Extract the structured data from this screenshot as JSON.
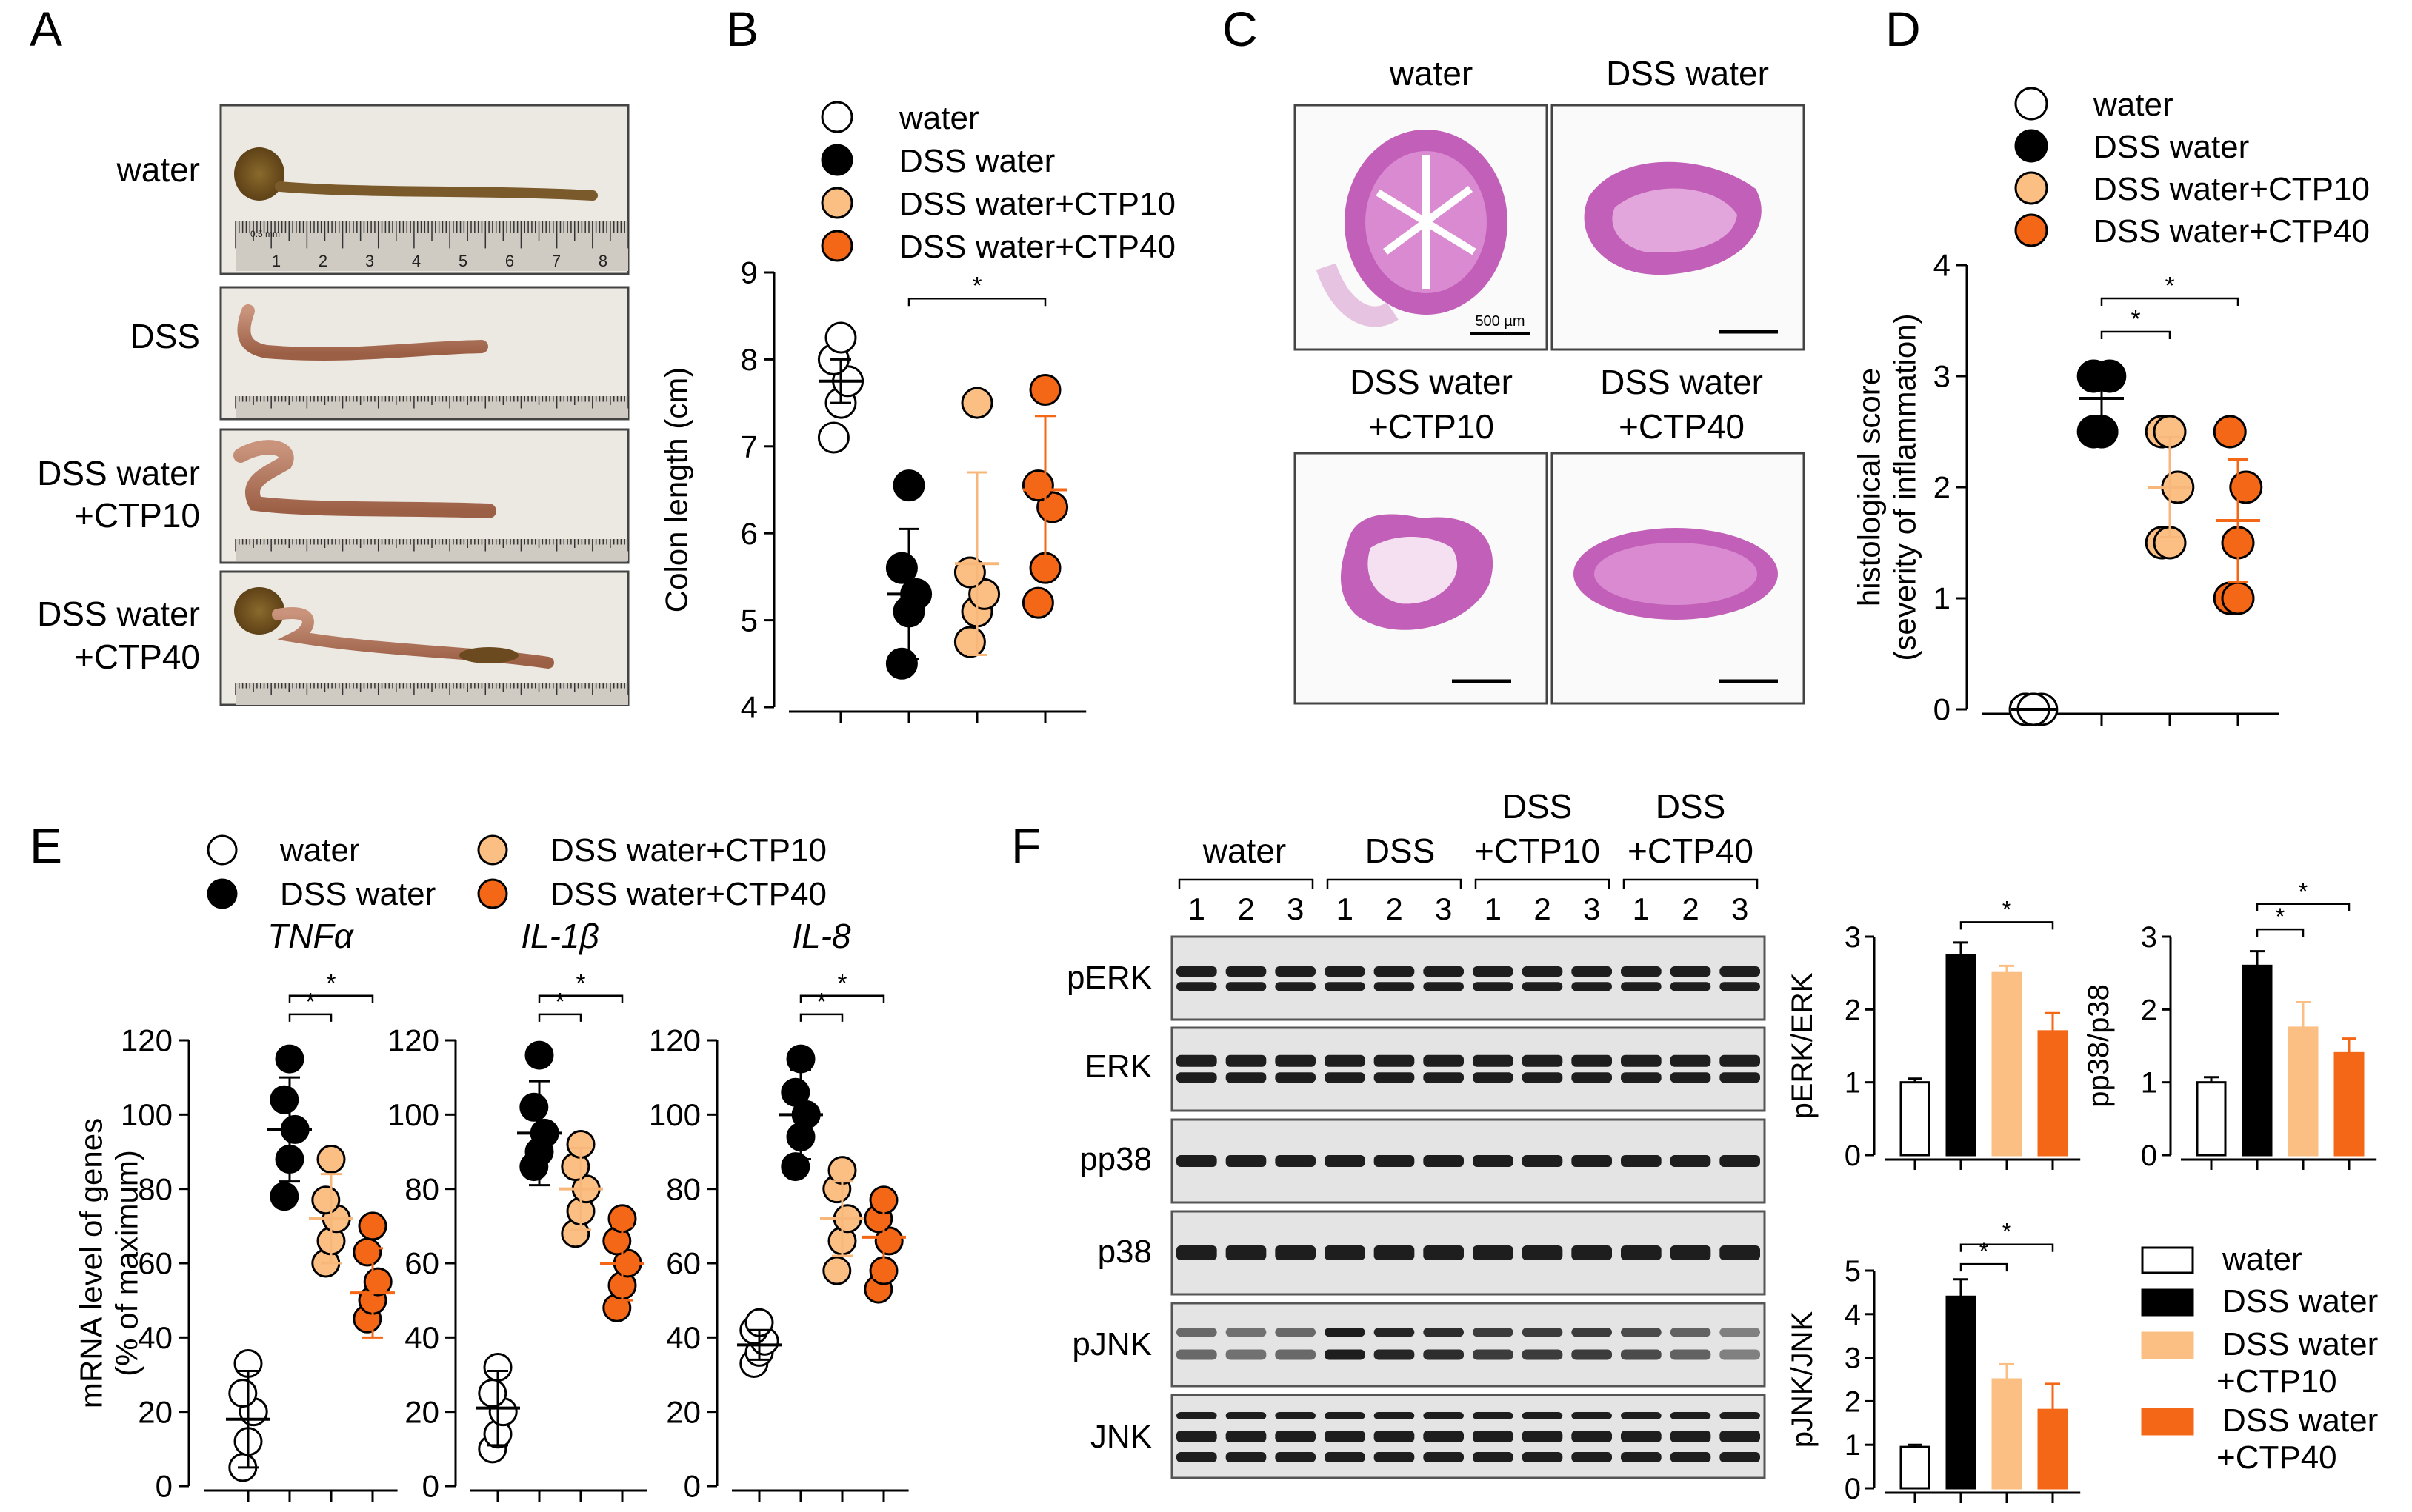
{
  "colors": {
    "water": "#ffffff",
    "dss": "#000000",
    "ctp10": "#fbbf83",
    "ctp40": "#f46717"
  },
  "groups": [
    {
      "key": "water",
      "label": "water"
    },
    {
      "key": "dss",
      "label": "DSS water"
    },
    {
      "key": "ctp10",
      "label": "DSS water+CTP10"
    },
    {
      "key": "ctp40",
      "label": "DSS water+CTP40"
    }
  ],
  "panel_a": {
    "letter": "A",
    "rows": [
      {
        "label1": "water",
        "label2": ""
      },
      {
        "label1": "DSS",
        "label2": ""
      },
      {
        "label1": "DSS water",
        "label2": "+CTP10"
      },
      {
        "label1": "DSS water",
        "label2": "+CTP40"
      }
    ],
    "ruler_numbers": [
      "1",
      "2",
      "3",
      "4",
      "5",
      "6",
      "7",
      "8"
    ],
    "ruler_unit": "0.5 mm"
  },
  "panel_c": {
    "letter": "C",
    "titles": [
      {
        "l1": "water",
        "l2": ""
      },
      {
        "l1": "DSS water",
        "l2": ""
      },
      {
        "l1": "DSS water",
        "l2": "+CTP10"
      },
      {
        "l1": "DSS water",
        "l2": "+CTP40"
      }
    ],
    "scale_label": "500 µm"
  },
  "panel_f": {
    "letter": "F",
    "lane_groups": [
      {
        "l1": "",
        "l2": "water"
      },
      {
        "l1": "",
        "l2": "DSS"
      },
      {
        "l1": "DSS",
        "l2": "+CTP10"
      },
      {
        "l1": "DSS",
        "l2": "+CTP40"
      }
    ],
    "lane_numbers": [
      "1",
      "2",
      "3"
    ],
    "blots": [
      "pERK",
      "ERK",
      "pp38",
      "p38",
      "pJNK",
      "JNK"
    ],
    "legend": [
      {
        "l1": "water",
        "l2": "",
        "color": "#ffffff"
      },
      {
        "l1": "DSS water",
        "l2": "",
        "color": "#000000"
      },
      {
        "l1": "DSS water",
        "l2": "+CTP10",
        "color": "#fbbf83"
      },
      {
        "l1": "DSS water",
        "l2": "+CTP40",
        "color": "#f46717"
      }
    ]
  },
  "chart_data": [
    {
      "id": "B",
      "letter": "B",
      "type": "scatter",
      "title": "",
      "xlabel": "",
      "ylabel": "Colon length (cm)",
      "ylim": [
        4,
        9
      ],
      "yticks": [
        4,
        5,
        6,
        7,
        8,
        9
      ],
      "legend": "top",
      "groups": [
        "water",
        "DSS water",
        "DSS water+CTP10",
        "DSS water+CTP40"
      ],
      "points": [
        [
          7.1,
          7.5,
          7.75,
          8.0,
          8.25
        ],
        [
          4.5,
          5.1,
          5.3,
          5.6,
          6.55
        ],
        [
          4.75,
          5.1,
          5.3,
          5.55,
          7.5
        ],
        [
          5.2,
          5.6,
          6.3,
          6.55,
          7.65
        ]
      ],
      "mean": [
        7.75,
        5.3,
        5.65,
        6.5
      ],
      "sem": [
        0.25,
        0.75,
        1.05,
        0.85
      ],
      "significance": [
        {
          "from": 1,
          "to": 3,
          "label": "*",
          "y": 8.7
        }
      ]
    },
    {
      "id": "D",
      "letter": "D",
      "type": "scatter",
      "title": "",
      "xlabel": "",
      "ylabel": "histological score",
      "ylabel2": "(severity of inflammation)",
      "ylim": [
        0,
        4
      ],
      "yticks": [
        0,
        1,
        2,
        3,
        4
      ],
      "legend": "top",
      "groups": [
        "water",
        "DSS water",
        "DSS water+CTP10",
        "DSS water+CTP40"
      ],
      "points": [
        [
          0,
          0,
          0,
          0,
          0
        ],
        [
          2.5,
          2.5,
          3.0,
          3.0,
          2.5
        ],
        [
          1.5,
          1.5,
          2.0,
          2.5,
          2.5
        ],
        [
          1.0,
          1.5,
          2.0,
          2.5,
          1.0
        ]
      ],
      "mean": [
        0,
        2.8,
        2.0,
        1.7
      ],
      "sem": [
        0,
        0.2,
        0.45,
        0.55
      ],
      "significance": [
        {
          "from": 1,
          "to": 2,
          "label": "*",
          "y": 3.4
        },
        {
          "from": 1,
          "to": 3,
          "label": "*",
          "y": 3.7
        }
      ]
    },
    {
      "id": "E1",
      "type": "scatter",
      "title": "TNFα",
      "ylabel": "mRNA level of genes",
      "ylabel2": "(% of maximum)",
      "ylim": [
        0,
        120
      ],
      "yticks": [
        0,
        20,
        40,
        60,
        80,
        100,
        120
      ],
      "groups": [
        "water",
        "DSS water",
        "DSS water+CTP10",
        "DSS water+CTP40"
      ],
      "points": [
        [
          5,
          12,
          20,
          25,
          33
        ],
        [
          78,
          88,
          96,
          104,
          115
        ],
        [
          60,
          66,
          72,
          77,
          88
        ],
        [
          45,
          50,
          55,
          63,
          70
        ]
      ],
      "mean": [
        18,
        96,
        72,
        52
      ],
      "sem": [
        13,
        14,
        12,
        12
      ],
      "significance": [
        {
          "from": 1,
          "to": 2,
          "label": "*",
          "y": 127
        },
        {
          "from": 1,
          "to": 3,
          "label": "*",
          "y": 132
        }
      ]
    },
    {
      "id": "E2",
      "type": "scatter",
      "title": "IL-1β",
      "ylabel": "",
      "ylim": [
        0,
        120
      ],
      "yticks": [
        0,
        20,
        40,
        60,
        80,
        100,
        120
      ],
      "groups": [
        "water",
        "DSS water",
        "DSS water+CTP10",
        "DSS water+CTP40"
      ],
      "points": [
        [
          10,
          14,
          20,
          25,
          32
        ],
        [
          86,
          90,
          95,
          102,
          116
        ],
        [
          68,
          74,
          80,
          86,
          92
        ],
        [
          48,
          54,
          60,
          66,
          72
        ]
      ],
      "mean": [
        21,
        95,
        80,
        60
      ],
      "sem": [
        10,
        14,
        11,
        10
      ],
      "significance": [
        {
          "from": 1,
          "to": 2,
          "label": "*",
          "y": 127
        },
        {
          "from": 1,
          "to": 3,
          "label": "*",
          "y": 132
        }
      ]
    },
    {
      "id": "E3",
      "type": "scatter",
      "title": "IL-8",
      "ylabel": "",
      "ylim": [
        0,
        120
      ],
      "yticks": [
        0,
        20,
        40,
        60,
        80,
        100,
        120
      ],
      "groups": [
        "water",
        "DSS water",
        "DSS water+CTP10",
        "DSS water+CTP40"
      ],
      "points": [
        [
          33,
          36,
          39,
          42,
          44
        ],
        [
          86,
          94,
          100,
          106,
          115
        ],
        [
          58,
          66,
          72,
          80,
          85
        ],
        [
          53,
          58,
          66,
          72,
          77
        ]
      ],
      "mean": [
        38,
        100,
        72,
        67
      ],
      "sem": [
        4,
        12,
        10,
        11
      ],
      "significance": [
        {
          "from": 1,
          "to": 2,
          "label": "*",
          "y": 127
        },
        {
          "from": 1,
          "to": 3,
          "label": "*",
          "y": 132
        }
      ]
    },
    {
      "id": "F1",
      "type": "bar",
      "ylabel": "pERK/ERK",
      "ylim": [
        0,
        3
      ],
      "yticks": [
        0,
        1,
        2,
        3
      ],
      "categories": [
        "water",
        "DSS water",
        "DSS water+CTP10",
        "DSS water+CTP40"
      ],
      "values": [
        1.0,
        2.75,
        2.5,
        1.7
      ],
      "errors": [
        0.05,
        0.17,
        0.1,
        0.25
      ],
      "significance": [
        {
          "from": 1,
          "to": 3,
          "label": "*",
          "y": 3.2
        }
      ]
    },
    {
      "id": "F2",
      "type": "bar",
      "ylabel": "pp38/p38",
      "ylim": [
        0,
        3
      ],
      "yticks": [
        0,
        1,
        2,
        3
      ],
      "categories": [
        "water",
        "DSS water",
        "DSS water+CTP10",
        "DSS water+CTP40"
      ],
      "values": [
        1.0,
        2.6,
        1.75,
        1.4
      ],
      "errors": [
        0.07,
        0.2,
        0.35,
        0.2
      ],
      "significance": [
        {
          "from": 1,
          "to": 2,
          "label": "*",
          "y": 3.1
        },
        {
          "from": 1,
          "to": 3,
          "label": "*",
          "y": 3.45
        }
      ]
    },
    {
      "id": "F3",
      "type": "bar",
      "ylabel": "pJNK/JNK",
      "ylim": [
        0,
        5
      ],
      "yticks": [
        0,
        1,
        2,
        3,
        4,
        5
      ],
      "categories": [
        "water",
        "DSS water",
        "DSS water+CTP10",
        "DSS water+CTP40"
      ],
      "values": [
        0.95,
        4.4,
        2.5,
        1.8
      ],
      "errors": [
        0.05,
        0.4,
        0.35,
        0.6
      ],
      "significance": [
        {
          "from": 1,
          "to": 2,
          "label": "*",
          "y": 5.15
        },
        {
          "from": 1,
          "to": 3,
          "label": "*",
          "y": 5.6
        }
      ]
    }
  ]
}
